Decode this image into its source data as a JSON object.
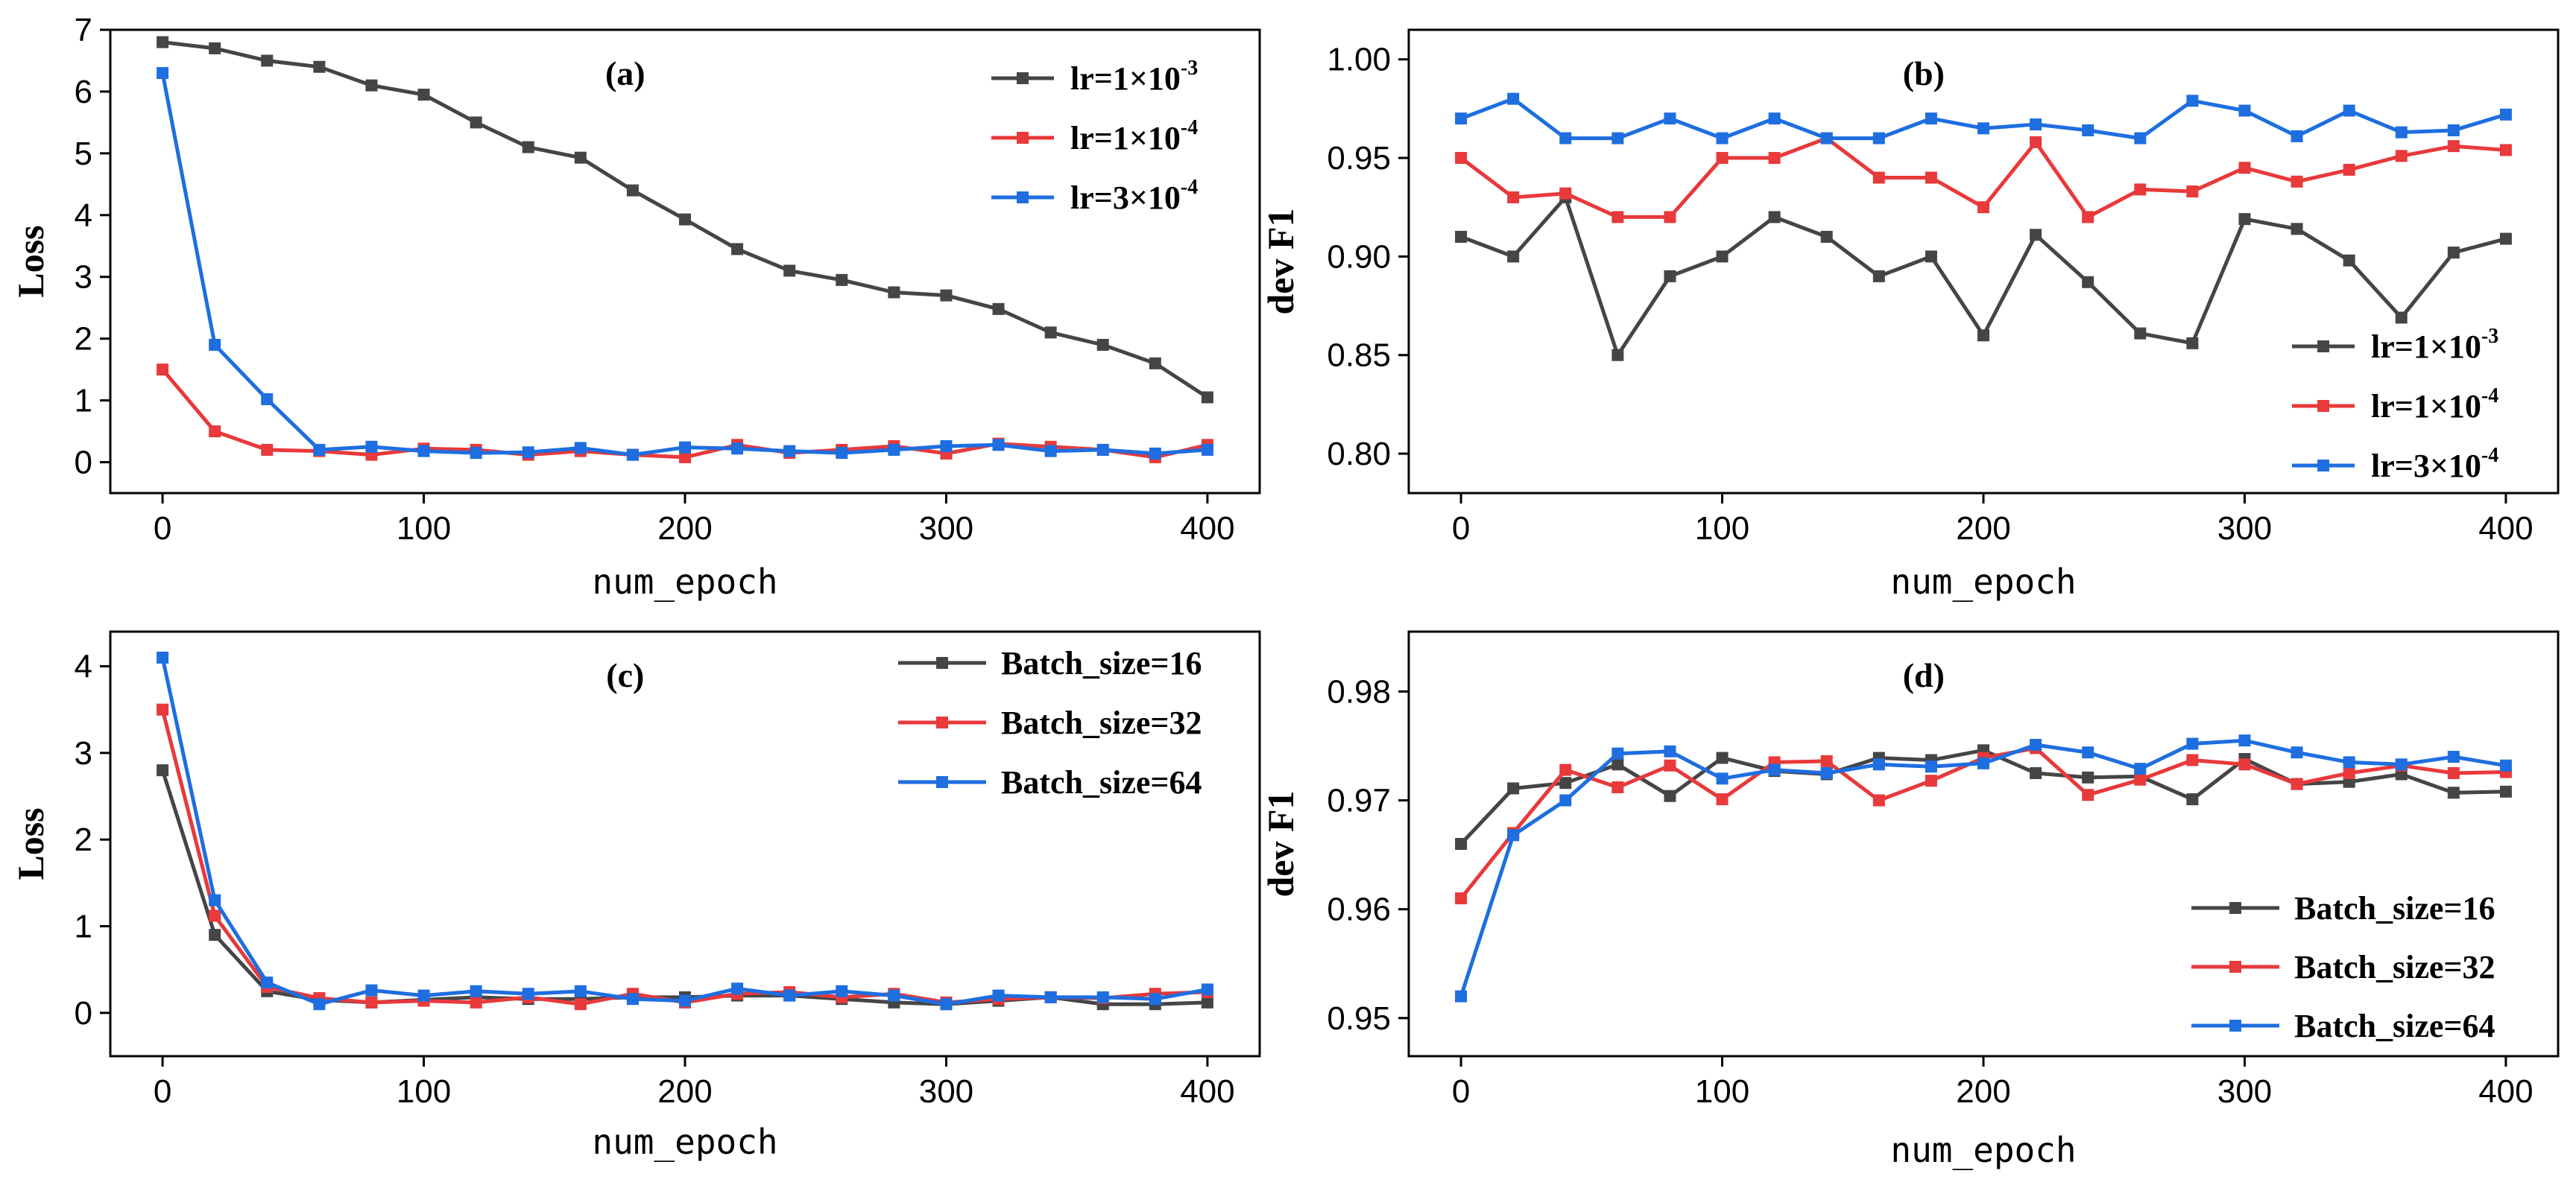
{
  "chart_data": [
    {
      "id": "a",
      "type": "line",
      "panel_label": "(a)",
      "xlabel": "num_epoch",
      "ylabel": "Loss",
      "xlim": [
        -20,
        420
      ],
      "ylim": [
        -0.5,
        7
      ],
      "xticks": [
        0,
        100,
        200,
        300,
        400
      ],
      "yticks": [
        0,
        1,
        2,
        3,
        4,
        5,
        6,
        7
      ],
      "ydecimals": 0,
      "legend_position": "top-right",
      "x": [
        0,
        20,
        40,
        60,
        80,
        100,
        120,
        140,
        160,
        180,
        200,
        220,
        240,
        260,
        280,
        300,
        320,
        340,
        360,
        380,
        400
      ],
      "series": [
        {
          "name": "lr=1×10",
          "exp": "-3",
          "color": "#454545",
          "values": [
            6.8,
            6.7,
            6.5,
            6.4,
            6.1,
            5.95,
            5.5,
            5.1,
            4.93,
            4.4,
            3.93,
            3.45,
            3.1,
            2.95,
            2.75,
            2.7,
            2.48,
            2.1,
            1.9,
            1.6,
            1.05
          ]
        },
        {
          "name": "lr=1×10",
          "exp": "-4",
          "color": "#e8393b",
          "values": [
            1.5,
            0.5,
            0.2,
            0.18,
            0.12,
            0.22,
            0.2,
            0.12,
            0.18,
            0.12,
            0.08,
            0.28,
            0.15,
            0.2,
            0.26,
            0.14,
            0.3,
            0.25,
            0.2,
            0.08,
            0.28
          ]
        },
        {
          "name": "lr=3×10",
          "exp": "-4",
          "color": "#1e6ee0",
          "values": [
            6.3,
            1.9,
            1.02,
            0.2,
            0.25,
            0.18,
            0.15,
            0.16,
            0.23,
            0.12,
            0.24,
            0.22,
            0.18,
            0.15,
            0.2,
            0.26,
            0.28,
            0.18,
            0.2,
            0.14,
            0.2
          ]
        }
      ]
    },
    {
      "id": "b",
      "type": "line",
      "panel_label": "(b)",
      "xlabel": "num_epoch",
      "ylabel": "dev F1",
      "xlim": [
        -20,
        420
      ],
      "ylim": [
        0.78,
        1.015
      ],
      "xticks": [
        0,
        100,
        200,
        300,
        400
      ],
      "yticks": [
        0.8,
        0.85,
        0.9,
        0.95,
        1.0
      ],
      "ydecimals": 2,
      "legend_position": "bottom-right",
      "x": [
        0,
        20,
        40,
        60,
        80,
        100,
        120,
        140,
        160,
        180,
        200,
        220,
        240,
        260,
        280,
        300,
        320,
        340,
        360,
        380,
        400
      ],
      "series": [
        {
          "name": "lr=1×10",
          "exp": "-3",
          "color": "#454545",
          "values": [
            0.91,
            0.9,
            0.93,
            0.85,
            0.89,
            0.9,
            0.92,
            0.91,
            0.89,
            0.9,
            0.86,
            0.911,
            0.887,
            0.861,
            0.856,
            0.919,
            0.914,
            0.898,
            0.869,
            0.902,
            0.909
          ]
        },
        {
          "name": "lr=1×10",
          "exp": "-4",
          "color": "#e8393b",
          "values": [
            0.95,
            0.93,
            0.932,
            0.92,
            0.92,
            0.95,
            0.95,
            0.96,
            0.94,
            0.94,
            0.925,
            0.958,
            0.92,
            0.934,
            0.933,
            0.945,
            0.938,
            0.944,
            0.951,
            0.956,
            0.954
          ]
        },
        {
          "name": "lr=3×10",
          "exp": "-4",
          "color": "#1e6ee0",
          "values": [
            0.97,
            0.98,
            0.96,
            0.96,
            0.97,
            0.96,
            0.97,
            0.96,
            0.96,
            0.97,
            0.965,
            0.967,
            0.964,
            0.96,
            0.979,
            0.974,
            0.961,
            0.974,
            0.963,
            0.964,
            0.972
          ]
        }
      ]
    },
    {
      "id": "c",
      "type": "line",
      "panel_label": "(c)",
      "xlabel": "num_epoch",
      "ylabel": "Loss",
      "xlim": [
        -20,
        420
      ],
      "ylim": [
        -0.5,
        4.4
      ],
      "xticks": [
        0,
        100,
        200,
        300,
        400
      ],
      "yticks": [
        0,
        1,
        2,
        3,
        4
      ],
      "ydecimals": 0,
      "legend_position": "top-right",
      "x": [
        0,
        20,
        40,
        60,
        80,
        100,
        120,
        140,
        160,
        180,
        200,
        220,
        240,
        260,
        280,
        300,
        320,
        340,
        360,
        380,
        400
      ],
      "series": [
        {
          "name": "Batch_size=16",
          "exp": "",
          "color": "#454545",
          "values": [
            2.8,
            0.9,
            0.25,
            0.15,
            0.12,
            0.15,
            0.18,
            0.16,
            0.16,
            0.18,
            0.18,
            0.2,
            0.2,
            0.16,
            0.12,
            0.1,
            0.14,
            0.18,
            0.1,
            0.1,
            0.12
          ]
        },
        {
          "name": "Batch_size=32",
          "exp": "",
          "color": "#e8393b",
          "values": [
            3.5,
            1.12,
            0.3,
            0.17,
            0.12,
            0.14,
            0.12,
            0.18,
            0.1,
            0.22,
            0.12,
            0.22,
            0.24,
            0.18,
            0.22,
            0.12,
            0.16,
            0.18,
            0.17,
            0.22,
            0.24
          ]
        },
        {
          "name": "Batch_size=64",
          "exp": "",
          "color": "#1e6ee0",
          "values": [
            4.1,
            1.3,
            0.35,
            0.1,
            0.26,
            0.2,
            0.25,
            0.22,
            0.25,
            0.16,
            0.14,
            0.28,
            0.2,
            0.25,
            0.2,
            0.1,
            0.2,
            0.18,
            0.18,
            0.16,
            0.27
          ]
        }
      ]
    },
    {
      "id": "d",
      "type": "line",
      "panel_label": "(d)",
      "xlabel": "num_epoch",
      "ylabel": "dev F1",
      "xlim": [
        -20,
        420
      ],
      "ylim": [
        0.9465,
        0.9855
      ],
      "xticks": [
        0,
        100,
        200,
        300,
        400
      ],
      "yticks": [
        0.95,
        0.96,
        0.97,
        0.98
      ],
      "ydecimals": 2,
      "legend_position": "bottom-right",
      "x": [
        0,
        20,
        40,
        60,
        80,
        100,
        120,
        140,
        160,
        180,
        200,
        220,
        240,
        260,
        280,
        300,
        320,
        340,
        360,
        380,
        400
      ],
      "series": [
        {
          "name": "Batch_size=16",
          "exp": "",
          "color": "#454545",
          "values": [
            0.966,
            0.9711,
            0.9716,
            0.9733,
            0.9704,
            0.9739,
            0.9727,
            0.9724,
            0.9739,
            0.9737,
            0.9746,
            0.9725,
            0.9721,
            0.9722,
            0.9701,
            0.9738,
            0.9715,
            0.9717,
            0.9724,
            0.9707,
            0.9708
          ]
        },
        {
          "name": "Batch_size=32",
          "exp": "",
          "color": "#e8393b",
          "values": [
            0.961,
            0.967,
            0.9728,
            0.9712,
            0.9732,
            0.9701,
            0.9735,
            0.9736,
            0.97,
            0.9718,
            0.9739,
            0.9748,
            0.9705,
            0.9719,
            0.9737,
            0.9733,
            0.9715,
            0.9725,
            0.9732,
            0.9725,
            0.9726
          ]
        },
        {
          "name": "Batch_size=64",
          "exp": "",
          "color": "#1e6ee0",
          "values": [
            0.952,
            0.9668,
            0.97,
            0.9743,
            0.9745,
            0.972,
            0.9728,
            0.9725,
            0.9733,
            0.9731,
            0.9734,
            0.9751,
            0.9744,
            0.9729,
            0.9752,
            0.9755,
            0.9744,
            0.9735,
            0.9733,
            0.974,
            0.9732
          ]
        }
      ]
    }
  ]
}
